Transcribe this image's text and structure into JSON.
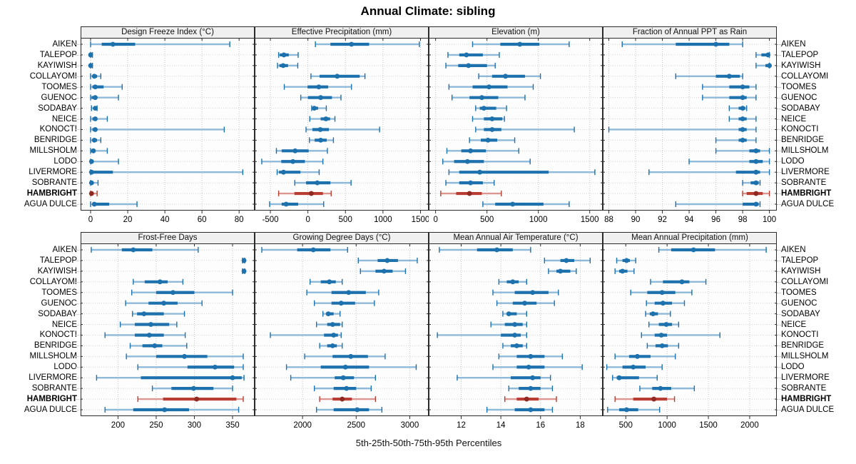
{
  "title": "Annual Climate: sibling",
  "footer": "5th-25th-50th-75th-95th Percentiles",
  "percentile_labels": [
    "5th",
    "25th",
    "50th",
    "75th",
    "95th"
  ],
  "sites": [
    "AIKEN",
    "TALEPOP",
    "KAYIWISH",
    "COLLAYOMI",
    "TOOMES",
    "GUENOC",
    "SODABAY",
    "NEICE",
    "KONOCTI",
    "BENRIDGE",
    "MILLSHOLM",
    "LODO",
    "LIVERMORE",
    "SOBRANTE",
    "HAMBRIGHT",
    "AGUA DULCE"
  ],
  "highlight_site": "HAMBRIGHT",
  "colors": {
    "blue": "#1d71ad",
    "blue_light": "#8fb9d9",
    "blue_dot": "#1d71ad",
    "red": "#b93d32",
    "red_light": "#dd968f",
    "red_dot": "#8e2a21",
    "grid": "#c6c6c6",
    "border": "#2b2b2b",
    "strip_bg": "#f0f0f0",
    "panel_bg": "#fdfdfd"
  },
  "chart_data": [
    {
      "type": "interval",
      "title": "Design Freeze Index (°C)",
      "row": 0,
      "col": 0,
      "xlim": [
        -5,
        88
      ],
      "ticks": [
        0,
        20,
        40,
        60,
        80
      ],
      "grid": true,
      "legend": "none",
      "series": [
        [
          0,
          6,
          12,
          24,
          75
        ],
        [
          0,
          0,
          0,
          0.3,
          1
        ],
        [
          0,
          0,
          0,
          0.3,
          1
        ],
        [
          0,
          1,
          2,
          3.5,
          5.5
        ],
        [
          0,
          1,
          2.5,
          7,
          17
        ],
        [
          0,
          0.5,
          2.5,
          3.5,
          15
        ],
        [
          0.5,
          1.5,
          2.5,
          3,
          3.5
        ],
        [
          0,
          1,
          2.5,
          3.5,
          9
        ],
        [
          0,
          1,
          2.5,
          3.5,
          72
        ],
        [
          0,
          1,
          2,
          3.5,
          5.5
        ],
        [
          0,
          0.5,
          1.5,
          2.5,
          9
        ],
        [
          0,
          0,
          0.5,
          1.5,
          15
        ],
        [
          0,
          0,
          0.5,
          12,
          82
        ],
        [
          0,
          0,
          0.5,
          1.5,
          4
        ],
        [
          0,
          0,
          0.5,
          1.5,
          3.5
        ],
        [
          0,
          1,
          2,
          10,
          25
        ]
      ]
    },
    {
      "type": "interval",
      "title": "Effective Precipitation (mm)",
      "row": 0,
      "col": 1,
      "xlim": [
        -700,
        1600
      ],
      "ticks": [
        -500,
        0,
        500,
        1000,
        1500
      ],
      "grid": true,
      "legend": "none",
      "series": [
        [
          100,
          300,
          580,
          815,
          1485
        ],
        [
          -390,
          -375,
          -320,
          -255,
          -130
        ],
        [
          -405,
          -380,
          -330,
          -265,
          -135
        ],
        [
          40,
          155,
          390,
          690,
          760
        ],
        [
          -315,
          -5,
          145,
          270,
          580
        ],
        [
          -95,
          0,
          170,
          320,
          440
        ],
        [
          50,
          60,
          85,
          135,
          245
        ],
        [
          25,
          170,
          240,
          295,
          360
        ],
        [
          -25,
          60,
          165,
          280,
          955
        ],
        [
          20,
          90,
          170,
          250,
          340
        ],
        [
          -420,
          -350,
          -170,
          10,
          260
        ],
        [
          -615,
          -355,
          -200,
          -40,
          200
        ],
        [
          -410,
          -385,
          -325,
          -100,
          150
        ],
        [
          -175,
          -25,
          125,
          300,
          575
        ],
        [
          -390,
          -180,
          45,
          200,
          310
        ],
        [
          -510,
          -350,
          -290,
          -130,
          210
        ]
      ]
    },
    {
      "type": "interval",
      "title": "Elevation (m)",
      "row": 0,
      "col": 2,
      "xlim": [
        -60,
        1620
      ],
      "ticks": [
        0,
        500,
        1000,
        1500
      ],
      "grid": true,
      "legend": "none",
      "series": [
        [
          360,
          630,
          820,
          1010,
          1300
        ],
        [
          120,
          230,
          300,
          460,
          620
        ],
        [
          100,
          220,
          320,
          500,
          580
        ],
        [
          420,
          550,
          680,
          870,
          1020
        ],
        [
          130,
          360,
          520,
          700,
          950
        ],
        [
          160,
          330,
          450,
          610,
          870
        ],
        [
          390,
          430,
          470,
          590,
          690
        ],
        [
          360,
          470,
          550,
          650,
          670
        ],
        [
          390,
          470,
          550,
          640,
          1350
        ],
        [
          330,
          440,
          510,
          600,
          770
        ],
        [
          110,
          250,
          340,
          490,
          810
        ],
        [
          70,
          180,
          310,
          470,
          920
        ],
        [
          130,
          230,
          430,
          1100,
          1550
        ],
        [
          100,
          230,
          340,
          460,
          570
        ],
        [
          50,
          200,
          330,
          450,
          640
        ],
        [
          460,
          580,
          750,
          1050,
          1300
        ]
      ]
    },
    {
      "type": "interval",
      "title": "Fraction of Annual PPT as Rain",
      "row": 0,
      "col": 3,
      "xlim": [
        87.6,
        100.5
      ],
      "ticks": [
        88,
        90,
        92,
        94,
        96,
        98,
        100
      ],
      "grid": true,
      "legend": "none",
      "series": [
        [
          89,
          93,
          96,
          97,
          98
        ],
        [
          99,
          99.4,
          99.9,
          100,
          100
        ],
        [
          99,
          99.7,
          100,
          100,
          100
        ],
        [
          93,
          96,
          97,
          97.8,
          98
        ],
        [
          95,
          97,
          98,
          98.5,
          99
        ],
        [
          95,
          97,
          98,
          98.3,
          99
        ],
        [
          97,
          97.7,
          98,
          98.2,
          98.3
        ],
        [
          97,
          97.7,
          98,
          98.3,
          99
        ],
        [
          88,
          97.7,
          98,
          98.3,
          99
        ],
        [
          96,
          97.7,
          98,
          98.3,
          99
        ],
        [
          96,
          98.5,
          99,
          99.3,
          100
        ],
        [
          94,
          98.5,
          99,
          99.5,
          100
        ],
        [
          91,
          97.5,
          99,
          99.3,
          100
        ],
        [
          98,
          98.6,
          99,
          99.2,
          99.3
        ],
        [
          98,
          98.3,
          99,
          99.5,
          100
        ],
        [
          93,
          98,
          99,
          99.2,
          99.3
        ]
      ]
    },
    {
      "type": "interval",
      "title": "Frost-Free Days",
      "row": 1,
      "col": 0,
      "xlim": [
        152,
        378
      ],
      "ticks": [
        200,
        250,
        300,
        350
      ],
      "grid": true,
      "legend": "none",
      "series": [
        [
          165,
          205,
          220,
          245,
          305
        ],
        [
          363,
          364,
          365,
          365,
          366
        ],
        [
          363,
          364,
          365,
          365,
          366
        ],
        [
          220,
          235,
          255,
          265,
          285
        ],
        [
          218,
          250,
          272,
          300,
          350
        ],
        [
          210,
          240,
          260,
          278,
          310
        ],
        [
          219,
          225,
          234,
          260,
          287
        ],
        [
          203,
          222,
          243,
          267,
          277
        ],
        [
          183,
          222,
          241,
          260,
          288
        ],
        [
          216,
          232,
          248,
          258,
          290
        ],
        [
          211,
          250,
          287,
          317,
          364
        ],
        [
          226,
          291,
          327,
          352,
          364
        ],
        [
          172,
          230,
          350,
          362,
          365
        ],
        [
          245,
          270,
          299,
          325,
          350
        ],
        [
          226,
          259,
          303,
          355,
          364
        ],
        [
          183,
          220,
          261,
          293,
          358
        ]
      ]
    },
    {
      "type": "interval",
      "title": "Growing Degree Days (°C)",
      "row": 1,
      "col": 1,
      "xlim": [
        1560,
        3170
      ],
      "ticks": [
        2000,
        2500,
        3000
      ],
      "grid": true,
      "legend": "none",
      "series": [
        [
          1620,
          1950,
          2100,
          2260,
          2420
        ],
        [
          2520,
          2700,
          2790,
          2890,
          3070
        ],
        [
          2540,
          2680,
          2760,
          2840,
          2960
        ],
        [
          2070,
          2170,
          2250,
          2310,
          2370
        ],
        [
          2040,
          2270,
          2430,
          2590,
          2710
        ],
        [
          2110,
          2270,
          2360,
          2490,
          2670
        ],
        [
          2190,
          2220,
          2240,
          2290,
          2350
        ],
        [
          2130,
          2230,
          2280,
          2350,
          2370
        ],
        [
          1700,
          2200,
          2290,
          2330,
          2360
        ],
        [
          2160,
          2230,
          2280,
          2320,
          2370
        ],
        [
          2020,
          2280,
          2450,
          2610,
          2770
        ],
        [
          1850,
          2170,
          2400,
          2620,
          3060
        ],
        [
          1890,
          2300,
          2380,
          2480,
          2680
        ],
        [
          2110,
          2290,
          2410,
          2500,
          2640
        ],
        [
          2160,
          2280,
          2370,
          2460,
          2680
        ],
        [
          2130,
          2290,
          2510,
          2620,
          2740
        ]
      ]
    },
    {
      "type": "interval",
      "title": "Mean Annual Air Temperature (°C)",
      "row": 1,
      "col": 2,
      "xlim": [
        10.4,
        19.1
      ],
      "ticks": [
        12,
        14,
        16,
        18
      ],
      "grid": true,
      "legend": "none",
      "series": [
        [
          10.9,
          12.8,
          13.8,
          14.6,
          15.5
        ],
        [
          16.2,
          17.0,
          17.3,
          17.7,
          18.5
        ],
        [
          16.4,
          16.8,
          17.0,
          17.5,
          17.8
        ],
        [
          13.9,
          14.3,
          14.6,
          14.9,
          15.3
        ],
        [
          13.6,
          14.7,
          15.6,
          16.4,
          16.9
        ],
        [
          13.8,
          14.6,
          15.2,
          15.8,
          16.7
        ],
        [
          14.1,
          14.3,
          14.4,
          14.8,
          15.3
        ],
        [
          13.5,
          14.2,
          14.7,
          15.1,
          15.3
        ],
        [
          10.8,
          14.0,
          14.7,
          15.0,
          15.3
        ],
        [
          14.1,
          14.5,
          14.8,
          15.1,
          15.3
        ],
        [
          13.9,
          14.8,
          15.5,
          16.2,
          17.1
        ],
        [
          13.6,
          14.8,
          15.4,
          16.2,
          18.1
        ],
        [
          11.8,
          14.5,
          15.6,
          16.0,
          16.5
        ],
        [
          14.4,
          14.9,
          15.5,
          16.0,
          16.6
        ],
        [
          14.2,
          14.8,
          15.3,
          15.9,
          16.8
        ],
        [
          13.3,
          14.7,
          15.5,
          16.2,
          16.6
        ]
      ]
    },
    {
      "type": "interval",
      "title": "Mean Annual Precipitation (mm)",
      "row": 1,
      "col": 3,
      "xlim": [
        230,
        2320
      ],
      "ticks": [
        500,
        1000,
        1500,
        2000
      ],
      "grid": true,
      "legend": "none",
      "series": [
        [
          900,
          1050,
          1320,
          1580,
          2200
        ],
        [
          390,
          460,
          510,
          550,
          620
        ],
        [
          370,
          420,
          460,
          520,
          600
        ],
        [
          800,
          950,
          1180,
          1270,
          1470
        ],
        [
          560,
          760,
          940,
          1100,
          1300
        ],
        [
          750,
          850,
          950,
          1060,
          1210
        ],
        [
          740,
          790,
          830,
          890,
          1040
        ],
        [
          780,
          900,
          990,
          1060,
          1140
        ],
        [
          690,
          850,
          930,
          1000,
          1640
        ],
        [
          760,
          860,
          940,
          1010,
          1140
        ],
        [
          370,
          540,
          640,
          800,
          1100
        ],
        [
          270,
          460,
          590,
          740,
          940
        ],
        [
          340,
          390,
          420,
          660,
          880
        ],
        [
          670,
          820,
          920,
          1050,
          1330
        ],
        [
          370,
          590,
          840,
          1000,
          1090
        ],
        [
          280,
          420,
          510,
          650,
          910
        ]
      ]
    }
  ]
}
